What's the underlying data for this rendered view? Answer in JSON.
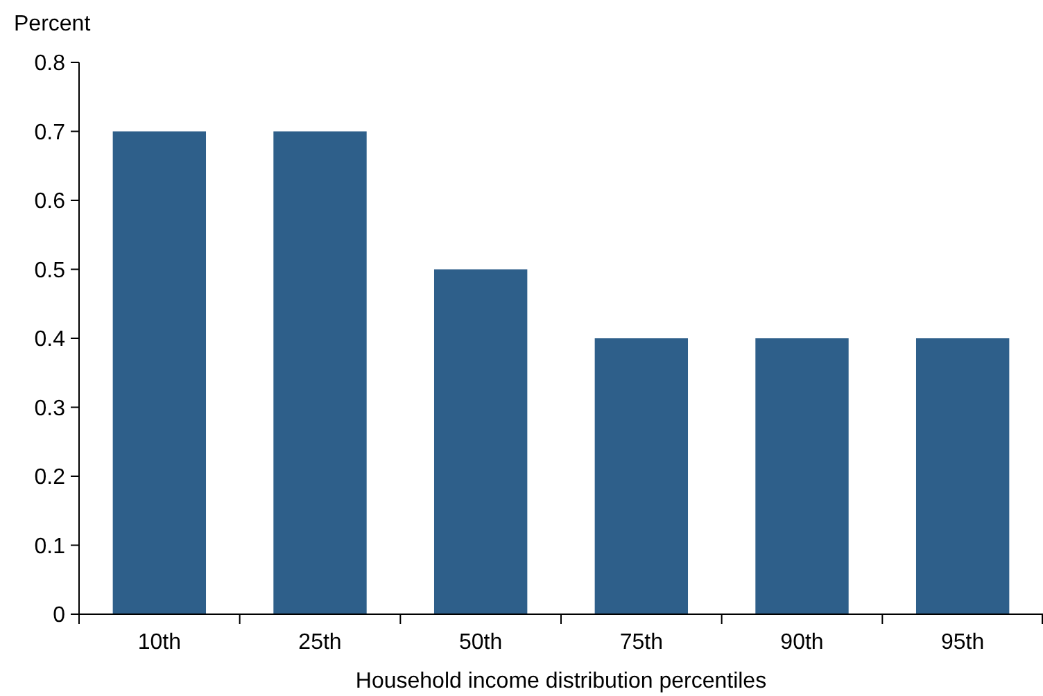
{
  "chart_data": {
    "type": "bar",
    "ylabel": "Percent",
    "xlabel": "Household income distribution percentiles",
    "categories": [
      "10th",
      "25th",
      "50th",
      "75th",
      "90th",
      "95th"
    ],
    "values": [
      0.7,
      0.7,
      0.5,
      0.4,
      0.4,
      0.4
    ],
    "color": "#2e5f8a",
    "ylim": [
      0,
      0.8
    ],
    "yticks": [
      0,
      0.1,
      0.2,
      0.3,
      0.4,
      0.5,
      0.6,
      0.7,
      0.8
    ],
    "grid": false
  }
}
